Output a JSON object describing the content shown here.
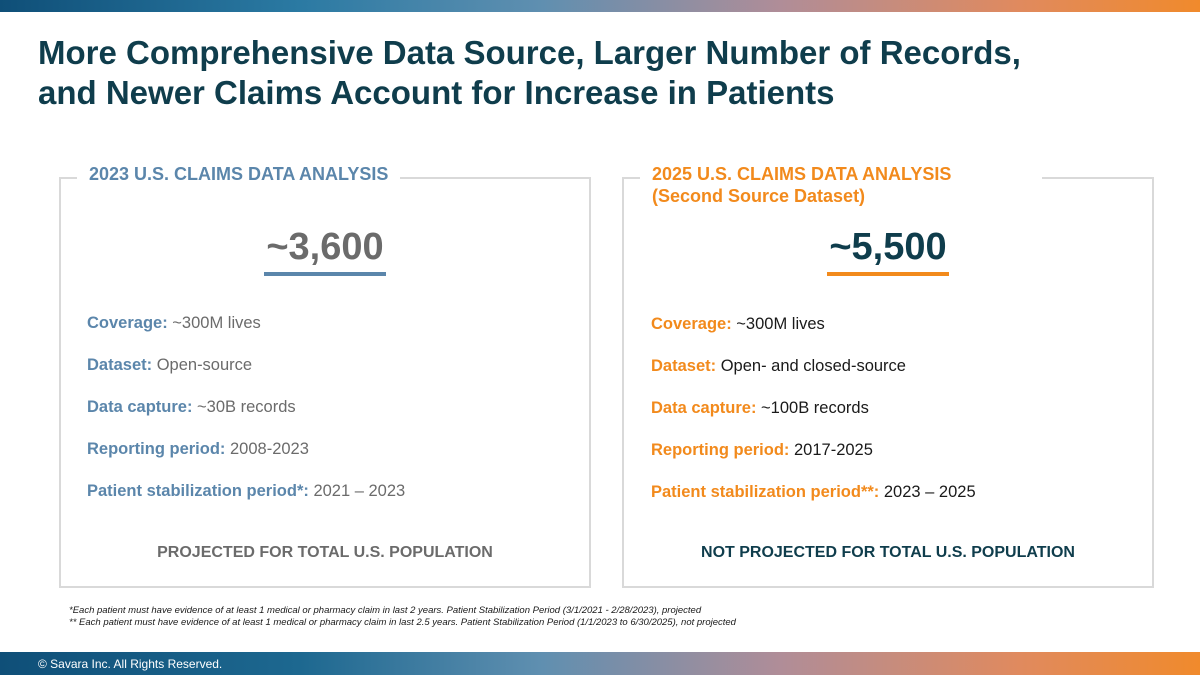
{
  "title": {
    "line1": "More Comprehensive Data Source, Larger Number of Records,",
    "line2": "and Newer Claims Account for Increase in Patients"
  },
  "left_panel": {
    "heading": "2023 U.S. CLAIMS DATA ANALYSIS",
    "big_number": "~3,600",
    "specs": [
      {
        "label": "Coverage:",
        "value": "~300M lives"
      },
      {
        "label": "Dataset:",
        "value": "Open-source"
      },
      {
        "label": "Data capture:",
        "value": "~30B records"
      },
      {
        "label": "Reporting period:",
        "value": "2008-2023"
      },
      {
        "label": "Patient stabilization period*:",
        "value": "2021 – 2023"
      }
    ],
    "projection": "PROJECTED FOR TOTAL U.S. POPULATION"
  },
  "right_panel": {
    "heading_line1": "2025 U.S. CLAIMS DATA ANALYSIS",
    "heading_line2": "(Second Source Dataset)",
    "big_number": "~5,500",
    "specs": [
      {
        "label": "Coverage:",
        "value": "~300M lives"
      },
      {
        "label": "Dataset:",
        "value": "Open- and closed-source"
      },
      {
        "label": "Data capture:",
        "value": "~100B records"
      },
      {
        "label": "Reporting period:",
        "value": "2017-2025"
      },
      {
        "label": "Patient stabilization period**:",
        "value": "2023 – 2025"
      }
    ],
    "projection": "NOT PROJECTED FOR TOTAL U.S. POPULATION"
  },
  "footnotes": {
    "note1": "*Each patient must have evidence of at least 1 medical or pharmacy claim in last 2 years. Patient Stabilization Period (3/1/2021 - 2/28/2023), projected",
    "note2": "** Each patient must have evidence of at least 1 medical or pharmacy claim in last 2.5 years. Patient Stabilization Period (1/1/2023 to 6/30/2025), not projected"
  },
  "footer": {
    "copyright": "© Savara Inc. All Rights Reserved."
  },
  "colors": {
    "title": "#0f3d4c",
    "left_accent": "#5b86ab",
    "right_accent": "#f28a1c",
    "gray_text": "#6b6b6b",
    "border": "#d9d9d9"
  }
}
